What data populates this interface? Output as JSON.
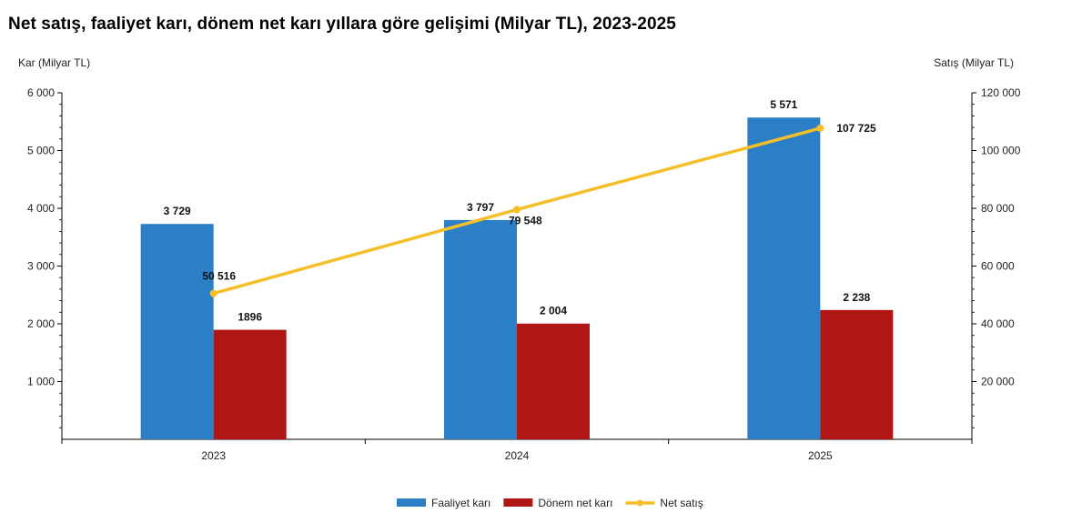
{
  "chart_data": {
    "type": "bar",
    "title": "Net satış, faaliyet karı, dönem net karı yıllara göre gelişimi (Milyar TL), 2023-2025",
    "categories": [
      "2023",
      "2024",
      "2025"
    ],
    "y_left": {
      "label": "Kar (Milyar TL)",
      "range": [
        0,
        6000
      ],
      "ticks": [
        1000,
        2000,
        3000,
        4000,
        5000,
        6000
      ],
      "tick_labels": [
        "1 000",
        "2 000",
        "3 000",
        "4 000",
        "5 000",
        "6 000"
      ]
    },
    "y_right": {
      "label": "Satış (Milyar TL)",
      "range": [
        0,
        120000
      ],
      "ticks": [
        20000,
        40000,
        60000,
        80000,
        100000,
        120000
      ],
      "tick_labels": [
        "20 000",
        "40 000",
        "60 000",
        "80 000",
        "100 000",
        "120 000"
      ]
    },
    "series": [
      {
        "name": "Faaliyet karı",
        "type": "bar",
        "axis": "left",
        "color": "#2a7fc6",
        "values": [
          3729,
          3797,
          5571
        ],
        "labels": [
          "3 729",
          "3 797",
          "5 571"
        ]
      },
      {
        "name": "Dönem net karı",
        "type": "bar",
        "axis": "left",
        "color": "#b01615",
        "values": [
          1896,
          2004,
          2238
        ],
        "labels": [
          "1896",
          "2 004",
          "2 238"
        ]
      },
      {
        "name": "Net satış",
        "type": "line",
        "axis": "right",
        "color": "#f5bf2a",
        "values": [
          50516,
          79548,
          107725
        ],
        "labels": [
          "50 516",
          "79 548",
          "107 725"
        ]
      }
    ],
    "legend": "bottom"
  }
}
